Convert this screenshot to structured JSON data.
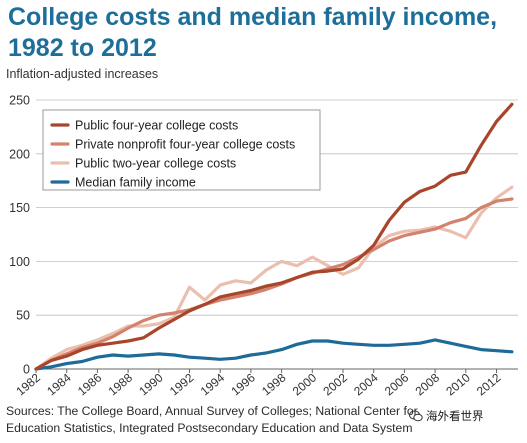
{
  "header": {
    "title": "College costs and median family income, 1982 to 2012",
    "subtitle": "Inflation-adjusted increases"
  },
  "footer": {
    "source": "Sources: The College Board, Annual Survey of Colleges; National Center for Education Statistics, Integrated Postsecondary Education and Data System",
    "watermark": "海外看世界"
  },
  "chart_data": {
    "type": "line",
    "x": [
      1982,
      1983,
      1984,
      1985,
      1986,
      1987,
      1988,
      1989,
      1990,
      1991,
      1992,
      1993,
      1994,
      1995,
      1996,
      1997,
      1998,
      1999,
      2000,
      2001,
      2002,
      2003,
      2004,
      2005,
      2006,
      2007,
      2008,
      2009,
      2010,
      2011,
      2012,
      2013
    ],
    "xticks": [
      "1982",
      "1984",
      "1986",
      "1988",
      "1990",
      "1992",
      "1994",
      "1996",
      "1998",
      "2000",
      "2002",
      "2004",
      "2006",
      "2008",
      "2010",
      "2012"
    ],
    "ylim": [
      0,
      250
    ],
    "yticks": [
      "0",
      "50",
      "100",
      "150",
      "200",
      "250"
    ],
    "grid": true,
    "legend_position": "top-left",
    "series": [
      {
        "name": "Public four-year college costs",
        "color": "#a8452a",
        "values": [
          0,
          8,
          12,
          18,
          22,
          24,
          26,
          29,
          38,
          46,
          54,
          60,
          67,
          70,
          73,
          77,
          80,
          85,
          90,
          91,
          93,
          102,
          115,
          138,
          155,
          165,
          170,
          180,
          183,
          208,
          230,
          246
        ]
      },
      {
        "name": "Private nonprofit four-year college costs",
        "color": "#d3836d",
        "values": [
          0,
          8,
          14,
          20,
          24,
          30,
          38,
          45,
          50,
          52,
          55,
          60,
          64,
          67,
          70,
          74,
          79,
          85,
          89,
          93,
          97,
          104,
          111,
          119,
          124,
          127,
          130,
          136,
          140,
          150,
          156,
          158
        ]
      },
      {
        "name": "Public two-year college costs",
        "color": "#ebbfae",
        "values": [
          0,
          10,
          18,
          22,
          27,
          33,
          40,
          40,
          42,
          48,
          76,
          64,
          78,
          82,
          80,
          92,
          100,
          96,
          104,
          96,
          88,
          94,
          113,
          124,
          128,
          129,
          132,
          128,
          122,
          145,
          159,
          169
        ]
      },
      {
        "name": "Median family income",
        "color": "#1e6b99",
        "values": [
          0,
          2,
          5,
          7,
          11,
          13,
          12,
          13,
          14,
          13,
          11,
          10,
          9,
          10,
          13,
          15,
          18,
          23,
          26,
          26,
          24,
          23,
          22,
          22,
          23,
          24,
          27,
          24,
          21,
          18,
          17,
          16
        ]
      }
    ]
  }
}
